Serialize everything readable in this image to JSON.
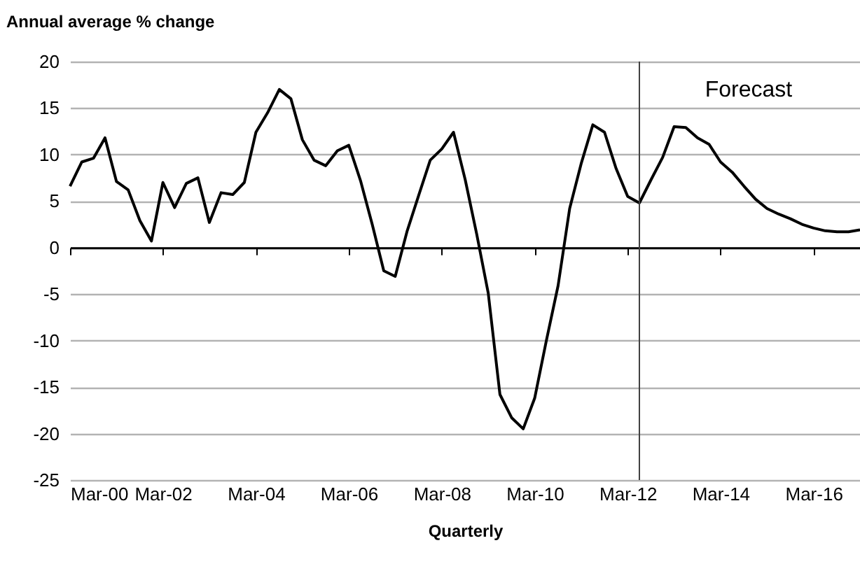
{
  "chart_data": {
    "type": "line",
    "xlabel": "Quarterly",
    "ylabel": "Annual average % change",
    "x": [
      "2000-03",
      "2000-06",
      "2000-09",
      "2000-12",
      "2001-03",
      "2001-06",
      "2001-09",
      "2001-12",
      "2002-03",
      "2002-06",
      "2002-09",
      "2002-12",
      "2003-03",
      "2003-06",
      "2003-09",
      "2003-12",
      "2004-03",
      "2004-06",
      "2004-09",
      "2004-12",
      "2005-03",
      "2005-06",
      "2005-09",
      "2005-12",
      "2006-03",
      "2006-06",
      "2006-09",
      "2006-12",
      "2007-03",
      "2007-06",
      "2007-09",
      "2007-12",
      "2008-03",
      "2008-06",
      "2008-09",
      "2008-12",
      "2009-03",
      "2009-06",
      "2009-09",
      "2009-12",
      "2010-03",
      "2010-06",
      "2010-09",
      "2010-12",
      "2011-03",
      "2011-06",
      "2011-09",
      "2011-12",
      "2012-03",
      "2012-06",
      "2012-09",
      "2012-12",
      "2013-03",
      "2013-06",
      "2013-09",
      "2013-12",
      "2014-03",
      "2014-06",
      "2014-09",
      "2014-12",
      "2015-03",
      "2015-06",
      "2015-09",
      "2015-12",
      "2016-03",
      "2016-06",
      "2016-09",
      "2016-12",
      "2017-03"
    ],
    "series": [
      {
        "color": "#000000",
        "values": [
          6.6,
          9.2,
          9.6,
          11.8,
          7.1,
          6.2,
          2.9,
          0.7,
          7.0,
          4.3,
          6.9,
          7.5,
          2.7,
          5.9,
          5.7,
          7.0,
          12.4,
          14.5,
          17.0,
          16.0,
          11.6,
          9.4,
          8.8,
          10.4,
          11.0,
          7.2,
          2.5,
          -2.5,
          -3.1,
          1.7,
          5.6,
          9.4,
          10.6,
          12.4,
          7.3,
          1.4,
          -4.9,
          -15.8,
          -18.3,
          -19.5,
          -16.2,
          -10,
          -4.1,
          4.2,
          9.0,
          13.2,
          12.4,
          8.5,
          5.5,
          4.8,
          7.3,
          9.7,
          13.0,
          12.9,
          11.8,
          11.1,
          9.2,
          8.1,
          6.6,
          5.2,
          4.2,
          3.6,
          3.1,
          2.5,
          2.1,
          1.8,
          1.7,
          1.7,
          1.9
        ]
      }
    ],
    "xlim": [
      "2000-03",
      "2017-03"
    ],
    "xticks": [
      {
        "value": "2000-03",
        "label": "Mar-00"
      },
      {
        "value": "2002-03",
        "label": "Mar-02"
      },
      {
        "value": "2004-03",
        "label": "Mar-04"
      },
      {
        "value": "2006-03",
        "label": "Mar-06"
      },
      {
        "value": "2008-03",
        "label": "Mar-08"
      },
      {
        "value": "2010-03",
        "label": "Mar-10"
      },
      {
        "value": "2012-03",
        "label": "Mar-12"
      },
      {
        "value": "2014-03",
        "label": "Mar-14"
      },
      {
        "value": "2016-03",
        "label": "Mar-16"
      }
    ],
    "ylim": [
      -25,
      20
    ],
    "yticks": [
      -25,
      -20,
      -15,
      -10,
      -5,
      0,
      5,
      10,
      15,
      20
    ],
    "grid": "y",
    "line_style": "solid",
    "ref_lines": [
      {
        "axis": "x",
        "value": "2012-06",
        "label": "Forecast",
        "color": "#404040"
      }
    ]
  }
}
